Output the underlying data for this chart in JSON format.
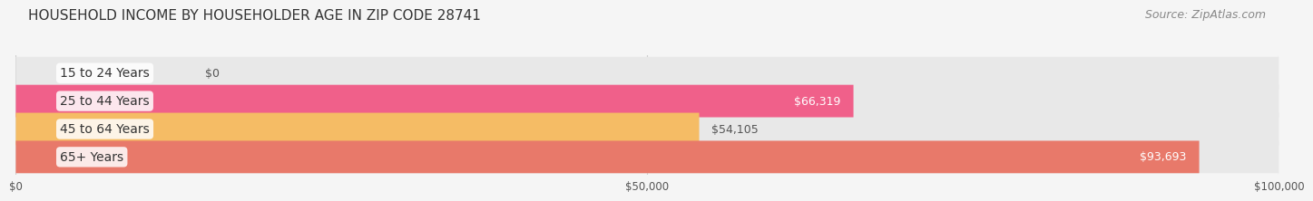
{
  "title": "HOUSEHOLD INCOME BY HOUSEHOLDER AGE IN ZIP CODE 28741",
  "source_text": "Source: ZipAtlas.com",
  "categories": [
    "15 to 24 Years",
    "25 to 44 Years",
    "45 to 64 Years",
    "65+ Years"
  ],
  "values": [
    0,
    66319,
    54105,
    93693
  ],
  "bar_colors": [
    "#b0aad4",
    "#f0608a",
    "#f5bc65",
    "#e8796a"
  ],
  "bar_bg_color": "#e8e8e8",
  "value_labels": [
    "$0",
    "$66,319",
    "$54,105",
    "$93,693"
  ],
  "xlim": [
    0,
    100000
  ],
  "xtick_values": [
    0,
    50000,
    100000
  ],
  "xtick_labels": [
    "$0",
    "$50,000",
    "$100,000"
  ],
  "title_fontsize": 11,
  "source_fontsize": 9,
  "label_fontsize": 10,
  "value_fontsize": 9,
  "background_color": "#f5f5f5"
}
